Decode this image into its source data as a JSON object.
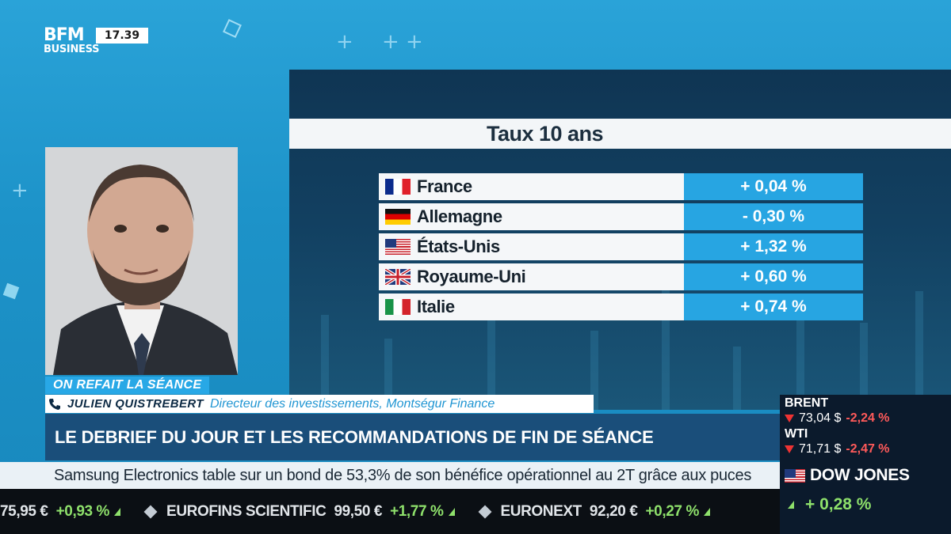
{
  "channel": {
    "logo_line1": "BFM",
    "logo_line2": "BUSINESS",
    "clock": "17.39"
  },
  "table": {
    "title": "Taux 10 ans",
    "rows": [
      {
        "country": "France",
        "flag": "france-flag-icon",
        "value": "+ 0,04 %"
      },
      {
        "country": "Allemagne",
        "flag": "germany-flag-icon",
        "value": "- 0,30 %"
      },
      {
        "country": "États-Unis",
        "flag": "usa-flag-icon",
        "value": "+ 1,32 %"
      },
      {
        "country": "Royaume-Uni",
        "flag": "uk-flag-icon",
        "value": "+ 0,60 %"
      },
      {
        "country": "Italie",
        "flag": "italy-flag-icon",
        "value": "+ 0,74 %"
      }
    ]
  },
  "lower_third": {
    "show": "ON REFAIT LA SÉANCE",
    "guest_name": "JULIEN QUISTREBERT",
    "guest_role": "Directeur des investissements, Montségur Finance",
    "headline": "LE DEBRIEF DU JOUR ET LES RECOMMANDATIONS DE FIN DE SÉANCE"
  },
  "news_ticker": "Samsung Electronics table sur un bond de 53,3% de son bénéfice opérationnel au 2T grâce aux puces",
  "stock_ticker": [
    {
      "name": "",
      "price": "75,95 €",
      "change": "+0,93 %"
    },
    {
      "name": "EUROFINS SCIENTIFIC",
      "price": "99,50 €",
      "change": "+1,77 %"
    },
    {
      "name": "EURONEXT",
      "price": "92,20 €",
      "change": "+0,27 %"
    }
  ],
  "markets": {
    "brent": {
      "label": "BRENT",
      "price": "73,04 $",
      "change": "-2,24 %"
    },
    "wti": {
      "label": "WTI",
      "price": "71,71 $",
      "change": "-2,47 %"
    },
    "index": {
      "name": "DOW JONES",
      "change": "+ 0,28 %"
    }
  },
  "colors": {
    "accent_blue": "#27a5e2",
    "headline_bg": "#1a4e7a",
    "positive": "#8ee06b",
    "negative": "#ff5a5a"
  }
}
